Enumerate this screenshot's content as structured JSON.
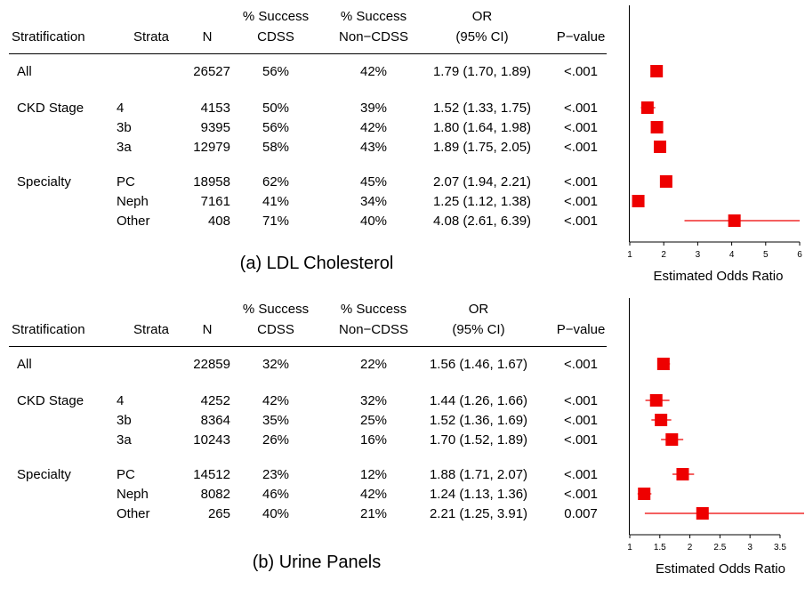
{
  "chart_data": [
    {
      "type": "table",
      "caption": "(a) LDL Cholesterol",
      "headers": {
        "stratification": "Stratification",
        "strata": "Strata",
        "n": "N",
        "cdss_top": "% Success",
        "cdss_bottom": "CDSS",
        "noncdss_top": "% Success",
        "noncdss_bottom": "Non−CDSS",
        "or_top": "OR",
        "or_bottom": "(95% CI)",
        "p": "P−value"
      },
      "rows": [
        {
          "group": "All",
          "strata": "",
          "n": "26527",
          "cdss": "56%",
          "noncdss": "42%",
          "or_text": "1.79 (1.70, 1.89)",
          "p": "<.001",
          "or": 1.79,
          "lo": 1.7,
          "hi": 1.89
        },
        {
          "group": "CKD Stage",
          "strata": "4",
          "n": "4153",
          "cdss": "50%",
          "noncdss": "39%",
          "or_text": "1.52 (1.33, 1.75)",
          "p": "<.001",
          "or": 1.52,
          "lo": 1.33,
          "hi": 1.75
        },
        {
          "group": "",
          "strata": "3b",
          "n": "9395",
          "cdss": "56%",
          "noncdss": "42%",
          "or_text": "1.80 (1.64, 1.98)",
          "p": "<.001",
          "or": 1.8,
          "lo": 1.64,
          "hi": 1.98
        },
        {
          "group": "",
          "strata": "3a",
          "n": "12979",
          "cdss": "58%",
          "noncdss": "43%",
          "or_text": "1.89 (1.75, 2.05)",
          "p": "<.001",
          "or": 1.89,
          "lo": 1.75,
          "hi": 2.05
        },
        {
          "group": "Specialty",
          "strata": "PC",
          "n": "18958",
          "cdss": "62%",
          "noncdss": "45%",
          "or_text": "2.07 (1.94, 2.21)",
          "p": "<.001",
          "or": 2.07,
          "lo": 1.94,
          "hi": 2.21
        },
        {
          "group": "",
          "strata": "Neph",
          "n": "7161",
          "cdss": "41%",
          "noncdss": "34%",
          "or_text": "1.25 (1.12, 1.38)",
          "p": "<.001",
          "or": 1.25,
          "lo": 1.12,
          "hi": 1.38
        },
        {
          "group": "",
          "strata": "Other",
          "n": "408",
          "cdss": "71%",
          "noncdss": "40%",
          "or_text": "4.08 (2.61, 6.39)",
          "p": "<.001",
          "or": 4.08,
          "lo": 2.61,
          "hi": 6.39
        }
      ],
      "forest": {
        "type": "scatter",
        "xlabel": "Estimated Odds Ratio",
        "xlim": [
          1,
          6
        ],
        "ticks": [
          1,
          2,
          3,
          4,
          5,
          6
        ],
        "tick_labels": [
          "1",
          "2",
          "3",
          "4",
          "5",
          "6"
        ],
        "marker_color": "#ee0000"
      }
    },
    {
      "type": "table",
      "caption": "(b) Urine Panels",
      "headers": {
        "stratification": "Stratification",
        "strata": "Strata",
        "n": "N",
        "cdss_top": "% Success",
        "cdss_bottom": "CDSS",
        "noncdss_top": "% Success",
        "noncdss_bottom": "Non−CDSS",
        "or_top": "OR",
        "or_bottom": "(95% CI)",
        "p": "P−value"
      },
      "rows": [
        {
          "group": "All",
          "strata": "",
          "n": "22859",
          "cdss": "32%",
          "noncdss": "22%",
          "or_text": "1.56 (1.46, 1.67)",
          "p": "<.001",
          "or": 1.56,
          "lo": 1.46,
          "hi": 1.67
        },
        {
          "group": "CKD Stage",
          "strata": "4",
          "n": "4252",
          "cdss": "42%",
          "noncdss": "32%",
          "or_text": "1.44 (1.26, 1.66)",
          "p": "<.001",
          "or": 1.44,
          "lo": 1.26,
          "hi": 1.66
        },
        {
          "group": "",
          "strata": "3b",
          "n": "8364",
          "cdss": "35%",
          "noncdss": "25%",
          "or_text": "1.52 (1.36, 1.69)",
          "p": "<.001",
          "or": 1.52,
          "lo": 1.36,
          "hi": 1.69
        },
        {
          "group": "",
          "strata": "3a",
          "n": "10243",
          "cdss": "26%",
          "noncdss": "16%",
          "or_text": "1.70 (1.52, 1.89)",
          "p": "<.001",
          "or": 1.7,
          "lo": 1.52,
          "hi": 1.89
        },
        {
          "group": "Specialty",
          "strata": "PC",
          "n": "14512",
          "cdss": "23%",
          "noncdss": "12%",
          "or_text": "1.88 (1.71, 2.07)",
          "p": "<.001",
          "or": 1.88,
          "lo": 1.71,
          "hi": 2.07
        },
        {
          "group": "",
          "strata": "Neph",
          "n": "8082",
          "cdss": "46%",
          "noncdss": "42%",
          "or_text": "1.24 (1.13, 1.36)",
          "p": "<.001",
          "or": 1.24,
          "lo": 1.13,
          "hi": 1.36
        },
        {
          "group": "",
          "strata": "Other",
          "n": "265",
          "cdss": "40%",
          "noncdss": "21%",
          "or_text": "2.21 (1.25,  3.91)",
          "p": "0.007",
          "or": 2.21,
          "lo": 1.25,
          "hi": 3.91
        }
      ],
      "forest": {
        "type": "scatter",
        "xlabel": "Estimated Odds Ratio",
        "xlim": [
          1,
          3.9
        ],
        "ticks": [
          1,
          1.5,
          2,
          2.5,
          3,
          3.5
        ],
        "tick_labels": [
          "1",
          "1.5",
          "2",
          "2.5",
          "3",
          "3.5"
        ],
        "marker_color": "#ee0000"
      }
    }
  ]
}
